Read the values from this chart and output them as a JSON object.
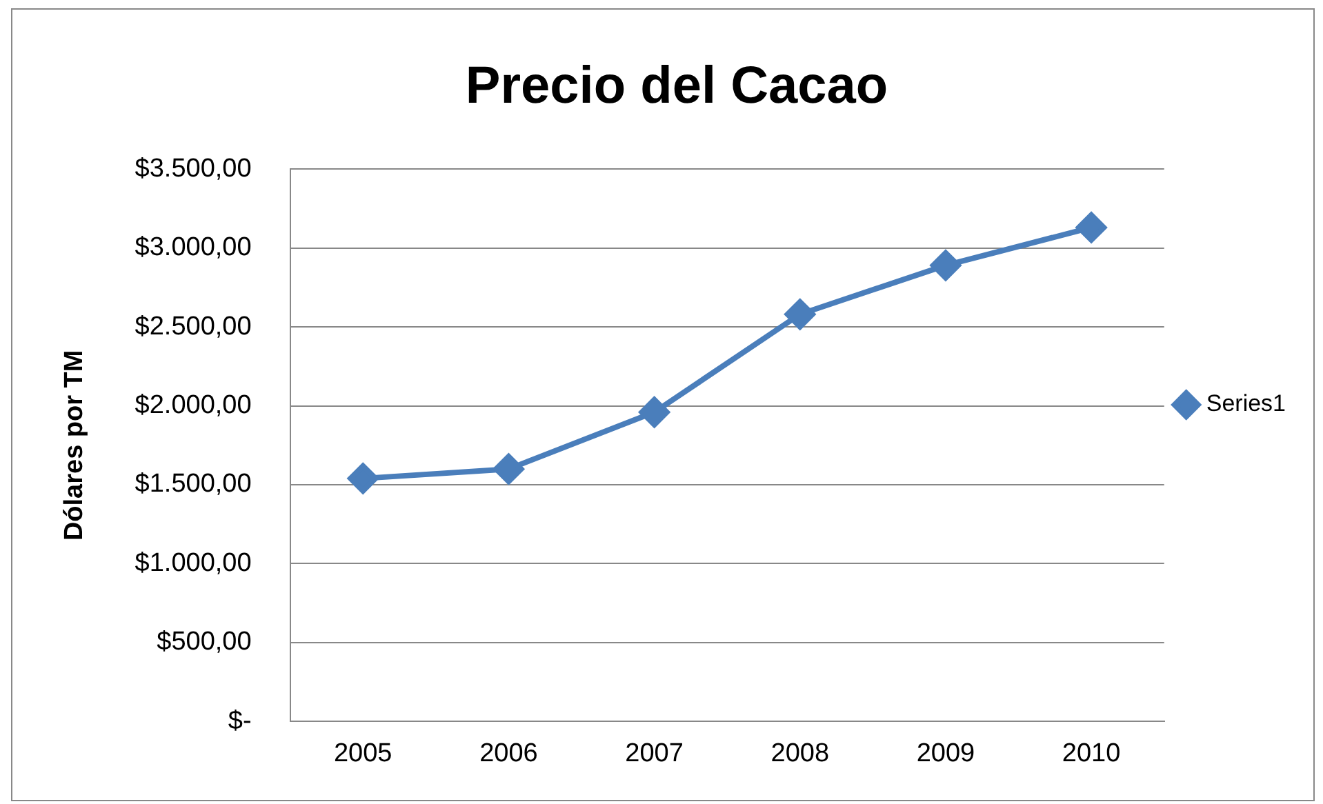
{
  "chart_data": {
    "type": "line",
    "title": "Precio del Cacao",
    "ylabel": "Dólares por TM",
    "categories": [
      "2005",
      "2006",
      "2007",
      "2008",
      "2009",
      "2010"
    ],
    "series": [
      {
        "name": "Series1",
        "color": "#4a7ebb",
        "values": [
          1540,
          1600,
          1960,
          2580,
          2890,
          3130
        ]
      }
    ],
    "ylim": [
      0,
      3500
    ],
    "yticks": [
      {
        "value": 0,
        "label": "$-"
      },
      {
        "value": 500,
        "label": "$500,00"
      },
      {
        "value": 1000,
        "label": "$1.000,00"
      },
      {
        "value": 1500,
        "label": "$1.500,00"
      },
      {
        "value": 2000,
        "label": "$2.000,00"
      },
      {
        "value": 2500,
        "label": "$2.500,00"
      },
      {
        "value": 3000,
        "label": "$3.000,00"
      },
      {
        "value": 3500,
        "label": "$3.500,00"
      }
    ],
    "grid": "y",
    "legend": "right",
    "marker": "diamond"
  }
}
